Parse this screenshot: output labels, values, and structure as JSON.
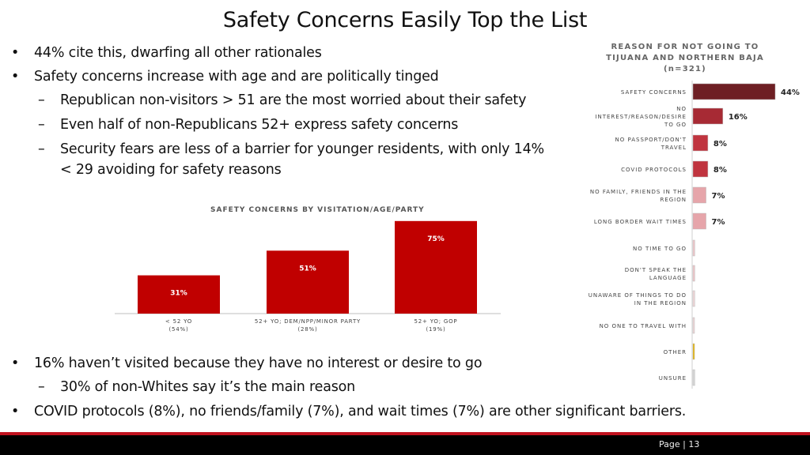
{
  "slide": {
    "title": "Safety Concerns Easily Top the List",
    "page_label": "Page | 13"
  },
  "bullets_top": [
    {
      "level": 1,
      "text": "44% cite this, dwarfing all other rationales"
    },
    {
      "level": 1,
      "text": "Safety concerns increase with age and are politically tinged"
    },
    {
      "level": 2,
      "text": "Republican non-visitors > 51 are the most worried about their safety"
    },
    {
      "level": 2,
      "text": "Even half of non-Republicans 52+ express safety concerns"
    },
    {
      "level": 2,
      "text": "Security fears are less of a barrier for younger residents, with only 14% < 29 avoiding for safety reasons"
    }
  ],
  "bullets_bottom": [
    {
      "level": 1,
      "text": "16% haven’t visited because they have no interest or desire to go"
    },
    {
      "level": 2,
      "text": "30% of non-Whites say it’s the main reason"
    },
    {
      "level": 1,
      "text": "COVID protocols (8%), no friends/family (7%), and wait times (7%) are other significant barriers."
    }
  ],
  "colors": {
    "accent_red": "#c1121f",
    "dark_red": "#6e1f24",
    "footer": "#000000"
  },
  "chart_data": [
    {
      "type": "bar",
      "title": "SAFETY CONCERNS BY VISITATION/AGE/PARTY",
      "categories": [
        [
          "< 52 YO",
          "(54%)"
        ],
        [
          "52+ YO; DEM/NPP/MINOR PARTY",
          "(28%)"
        ],
        [
          "52+ YO; GOP",
          "(19%)"
        ]
      ],
      "values": [
        31,
        51,
        75
      ],
      "value_labels": [
        "31%",
        "51%",
        "75%"
      ],
      "ylim": [
        0,
        80
      ],
      "color": "#c00000"
    },
    {
      "type": "bar",
      "orientation": "horizontal",
      "title": [
        "REASON FOR NOT GOING TO",
        "TIJUANA AND NORTHERN BAJA",
        "(n=321)"
      ],
      "categories": [
        [
          "SAFETY CONCERNS"
        ],
        [
          "NO",
          "INTEREST/REASON/DESIRE",
          "TO GO"
        ],
        [
          "NO PASSPORT/DON'T",
          "TRAVEL"
        ],
        [
          "COVID PROTOCOLS"
        ],
        [
          "NO FAMILY, FRIENDS IN THE",
          "REGION"
        ],
        [
          "LONG BORDER WAIT TIMES"
        ],
        [
          "NO TIME TO GO"
        ],
        [
          "DON'T SPEAK THE",
          "LANGUAGE"
        ],
        [
          "UNAWARE OF THINGS TO DO",
          "IN THE REGION"
        ],
        [
          "NO ONE TO TRAVEL WITH"
        ],
        [
          "OTHER"
        ],
        [
          "UNSURE"
        ]
      ],
      "values": [
        44,
        16,
        8,
        8,
        7,
        7,
        1,
        1,
        1,
        0.5,
        0.5,
        1
      ],
      "value_labels": [
        "44%",
        "16%",
        "8%",
        "8%",
        "7%",
        "7%",
        "",
        "",
        "",
        "",
        "",
        ""
      ],
      "colors": [
        "#6e1f24",
        "#a72a34",
        "#c0343f",
        "#c0343f",
        "#e6a5aa",
        "#e6a5aa",
        "#eec6c9",
        "#eec6c9",
        "#f0d6d8",
        "#f0d6d8",
        "#e8b400",
        "#d7d7d7"
      ]
    }
  ]
}
